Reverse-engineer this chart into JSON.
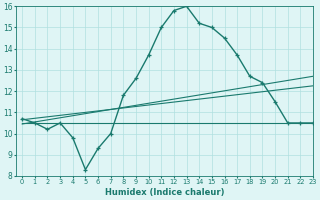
{
  "x": [
    0,
    1,
    2,
    3,
    4,
    5,
    6,
    7,
    8,
    9,
    10,
    11,
    12,
    13,
    14,
    15,
    16,
    17,
    18,
    19,
    20,
    21,
    22,
    23
  ],
  "y_main": [
    10.7,
    10.5,
    10.2,
    10.5,
    9.8,
    8.3,
    9.3,
    10.0,
    11.8,
    12.6,
    13.7,
    15.0,
    15.8,
    16.0,
    15.2,
    15.0,
    14.5,
    13.7,
    12.7,
    12.4,
    11.5,
    10.5,
    10.5,
    10.5
  ],
  "line_color": "#1a7a6e",
  "bg_color": "#dff5f5",
  "grid_color": "#b0e0e0",
  "xlabel": "Humidex (Indice chaleur)",
  "ylim": [
    8,
    16
  ],
  "xlim": [
    -0.5,
    23
  ],
  "yticks": [
    8,
    9,
    10,
    11,
    12,
    13,
    14,
    15,
    16
  ],
  "xticks": [
    0,
    1,
    2,
    3,
    4,
    5,
    6,
    7,
    8,
    9,
    10,
    11,
    12,
    13,
    14,
    15,
    16,
    17,
    18,
    19,
    20,
    21,
    22,
    23
  ],
  "flat_y": 10.5,
  "trend1_x": [
    0,
    23
  ],
  "trend1_y": [
    10.65,
    12.25
  ],
  "trend2_x": [
    0,
    23
  ],
  "trend2_y": [
    10.45,
    12.7
  ]
}
